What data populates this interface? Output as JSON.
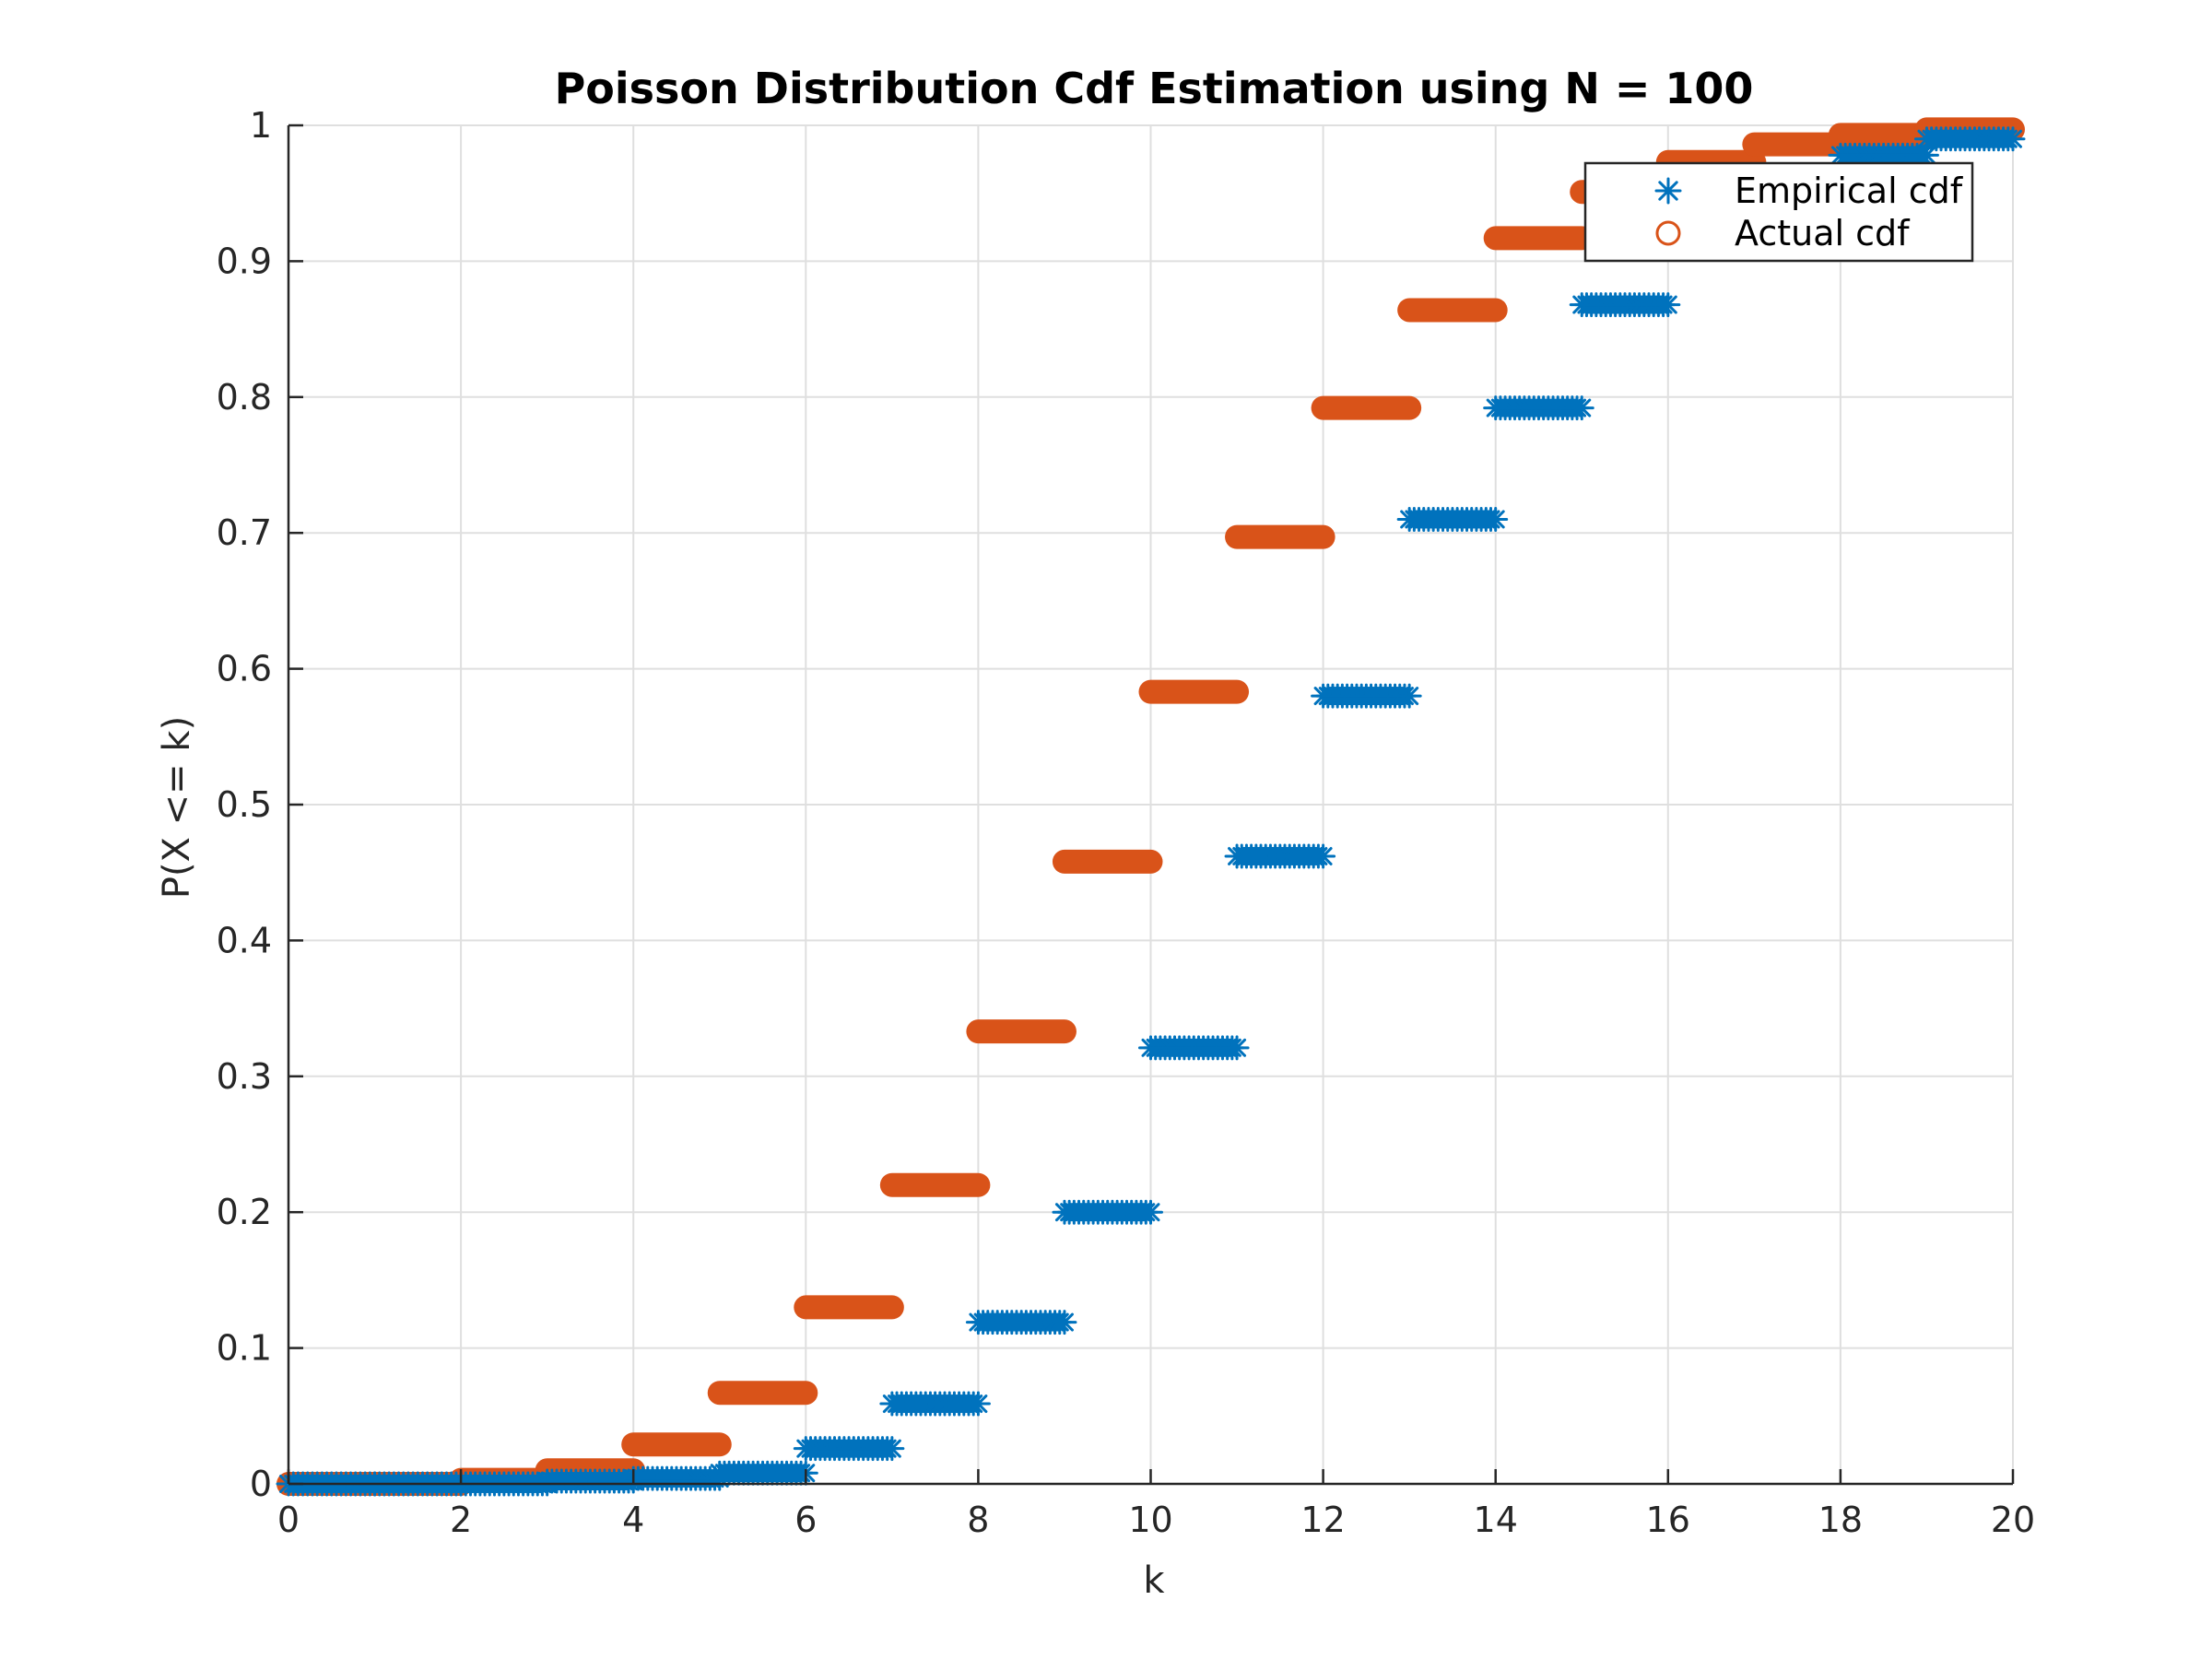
{
  "chart_data": {
    "type": "scatter",
    "title": "Poisson Distribution Cdf Estimation using N = 100",
    "xlabel": "k",
    "ylabel": "P(X <= k)",
    "xlim": [
      0,
      20
    ],
    "ylim": [
      0,
      1
    ],
    "xticks": [
      0,
      2,
      4,
      6,
      8,
      10,
      12,
      14,
      16,
      18,
      20
    ],
    "yticks": [
      0,
      0.1,
      0.2,
      0.3,
      0.4,
      0.5,
      0.6,
      0.7,
      0.8,
      0.9,
      1
    ],
    "ytick_labels": [
      "0",
      "0.1",
      "0.2",
      "0.3",
      "0.4",
      "0.5",
      "0.6",
      "0.7",
      "0.8",
      "0.9",
      "1"
    ],
    "grid": true,
    "legend_position": "top-right",
    "series": [
      {
        "name": "Empirical cdf",
        "marker": "asterisk",
        "color": "#0072BD",
        "steps": [
          {
            "x_start": 0,
            "x_end": 1,
            "y": 0
          },
          {
            "x_start": 1,
            "x_end": 2,
            "y": 0
          },
          {
            "x_start": 2,
            "x_end": 3,
            "y": 0
          },
          {
            "x_start": 3,
            "x_end": 4,
            "y": 0.002
          },
          {
            "x_start": 4,
            "x_end": 5,
            "y": 0.004
          },
          {
            "x_start": 5,
            "x_end": 6,
            "y": 0.008
          },
          {
            "x_start": 6,
            "x_end": 7,
            "y": 0.026
          },
          {
            "x_start": 7,
            "x_end": 8,
            "y": 0.059
          },
          {
            "x_start": 8,
            "x_end": 9,
            "y": 0.119
          },
          {
            "x_start": 9,
            "x_end": 10,
            "y": 0.2
          },
          {
            "x_start": 10,
            "x_end": 11,
            "y": 0.321
          },
          {
            "x_start": 11,
            "x_end": 12,
            "y": 0.462
          },
          {
            "x_start": 12,
            "x_end": 13,
            "y": 0.58
          },
          {
            "x_start": 13,
            "x_end": 14,
            "y": 0.71
          },
          {
            "x_start": 14,
            "x_end": 15,
            "y": 0.792
          },
          {
            "x_start": 15,
            "x_end": 16,
            "y": 0.868
          },
          {
            "x_start": 16,
            "x_end": 17,
            "y": 0.92
          },
          {
            "x_start": 17,
            "x_end": 18,
            "y": 0.955
          },
          {
            "x_start": 18,
            "x_end": 19,
            "y": 0.978
          },
          {
            "x_start": 19,
            "x_end": 20,
            "y": 0.99
          }
        ]
      },
      {
        "name": "Actual cdf",
        "marker": "circle",
        "color": "#D95319",
        "steps": [
          {
            "x_start": 0,
            "x_end": 1,
            "y": 0
          },
          {
            "x_start": 1,
            "x_end": 2,
            "y": 0
          },
          {
            "x_start": 2,
            "x_end": 3,
            "y": 0.003
          },
          {
            "x_start": 3,
            "x_end": 4,
            "y": 0.01
          },
          {
            "x_start": 4,
            "x_end": 5,
            "y": 0.029
          },
          {
            "x_start": 5,
            "x_end": 6,
            "y": 0.067
          },
          {
            "x_start": 6,
            "x_end": 7,
            "y": 0.13
          },
          {
            "x_start": 7,
            "x_end": 8,
            "y": 0.22
          },
          {
            "x_start": 8,
            "x_end": 9,
            "y": 0.333
          },
          {
            "x_start": 9,
            "x_end": 10,
            "y": 0.458
          },
          {
            "x_start": 10,
            "x_end": 11,
            "y": 0.583
          },
          {
            "x_start": 11,
            "x_end": 12,
            "y": 0.697
          },
          {
            "x_start": 12,
            "x_end": 13,
            "y": 0.792
          },
          {
            "x_start": 13,
            "x_end": 14,
            "y": 0.864
          },
          {
            "x_start": 14,
            "x_end": 15,
            "y": 0.917
          },
          {
            "x_start": 15,
            "x_end": 16,
            "y": 0.951
          },
          {
            "x_start": 16,
            "x_end": 17,
            "y": 0.973
          },
          {
            "x_start": 17,
            "x_end": 18,
            "y": 0.986
          },
          {
            "x_start": 18,
            "x_end": 19,
            "y": 0.993
          },
          {
            "x_start": 19,
            "x_end": 20,
            "y": 0.997
          }
        ]
      }
    ]
  }
}
